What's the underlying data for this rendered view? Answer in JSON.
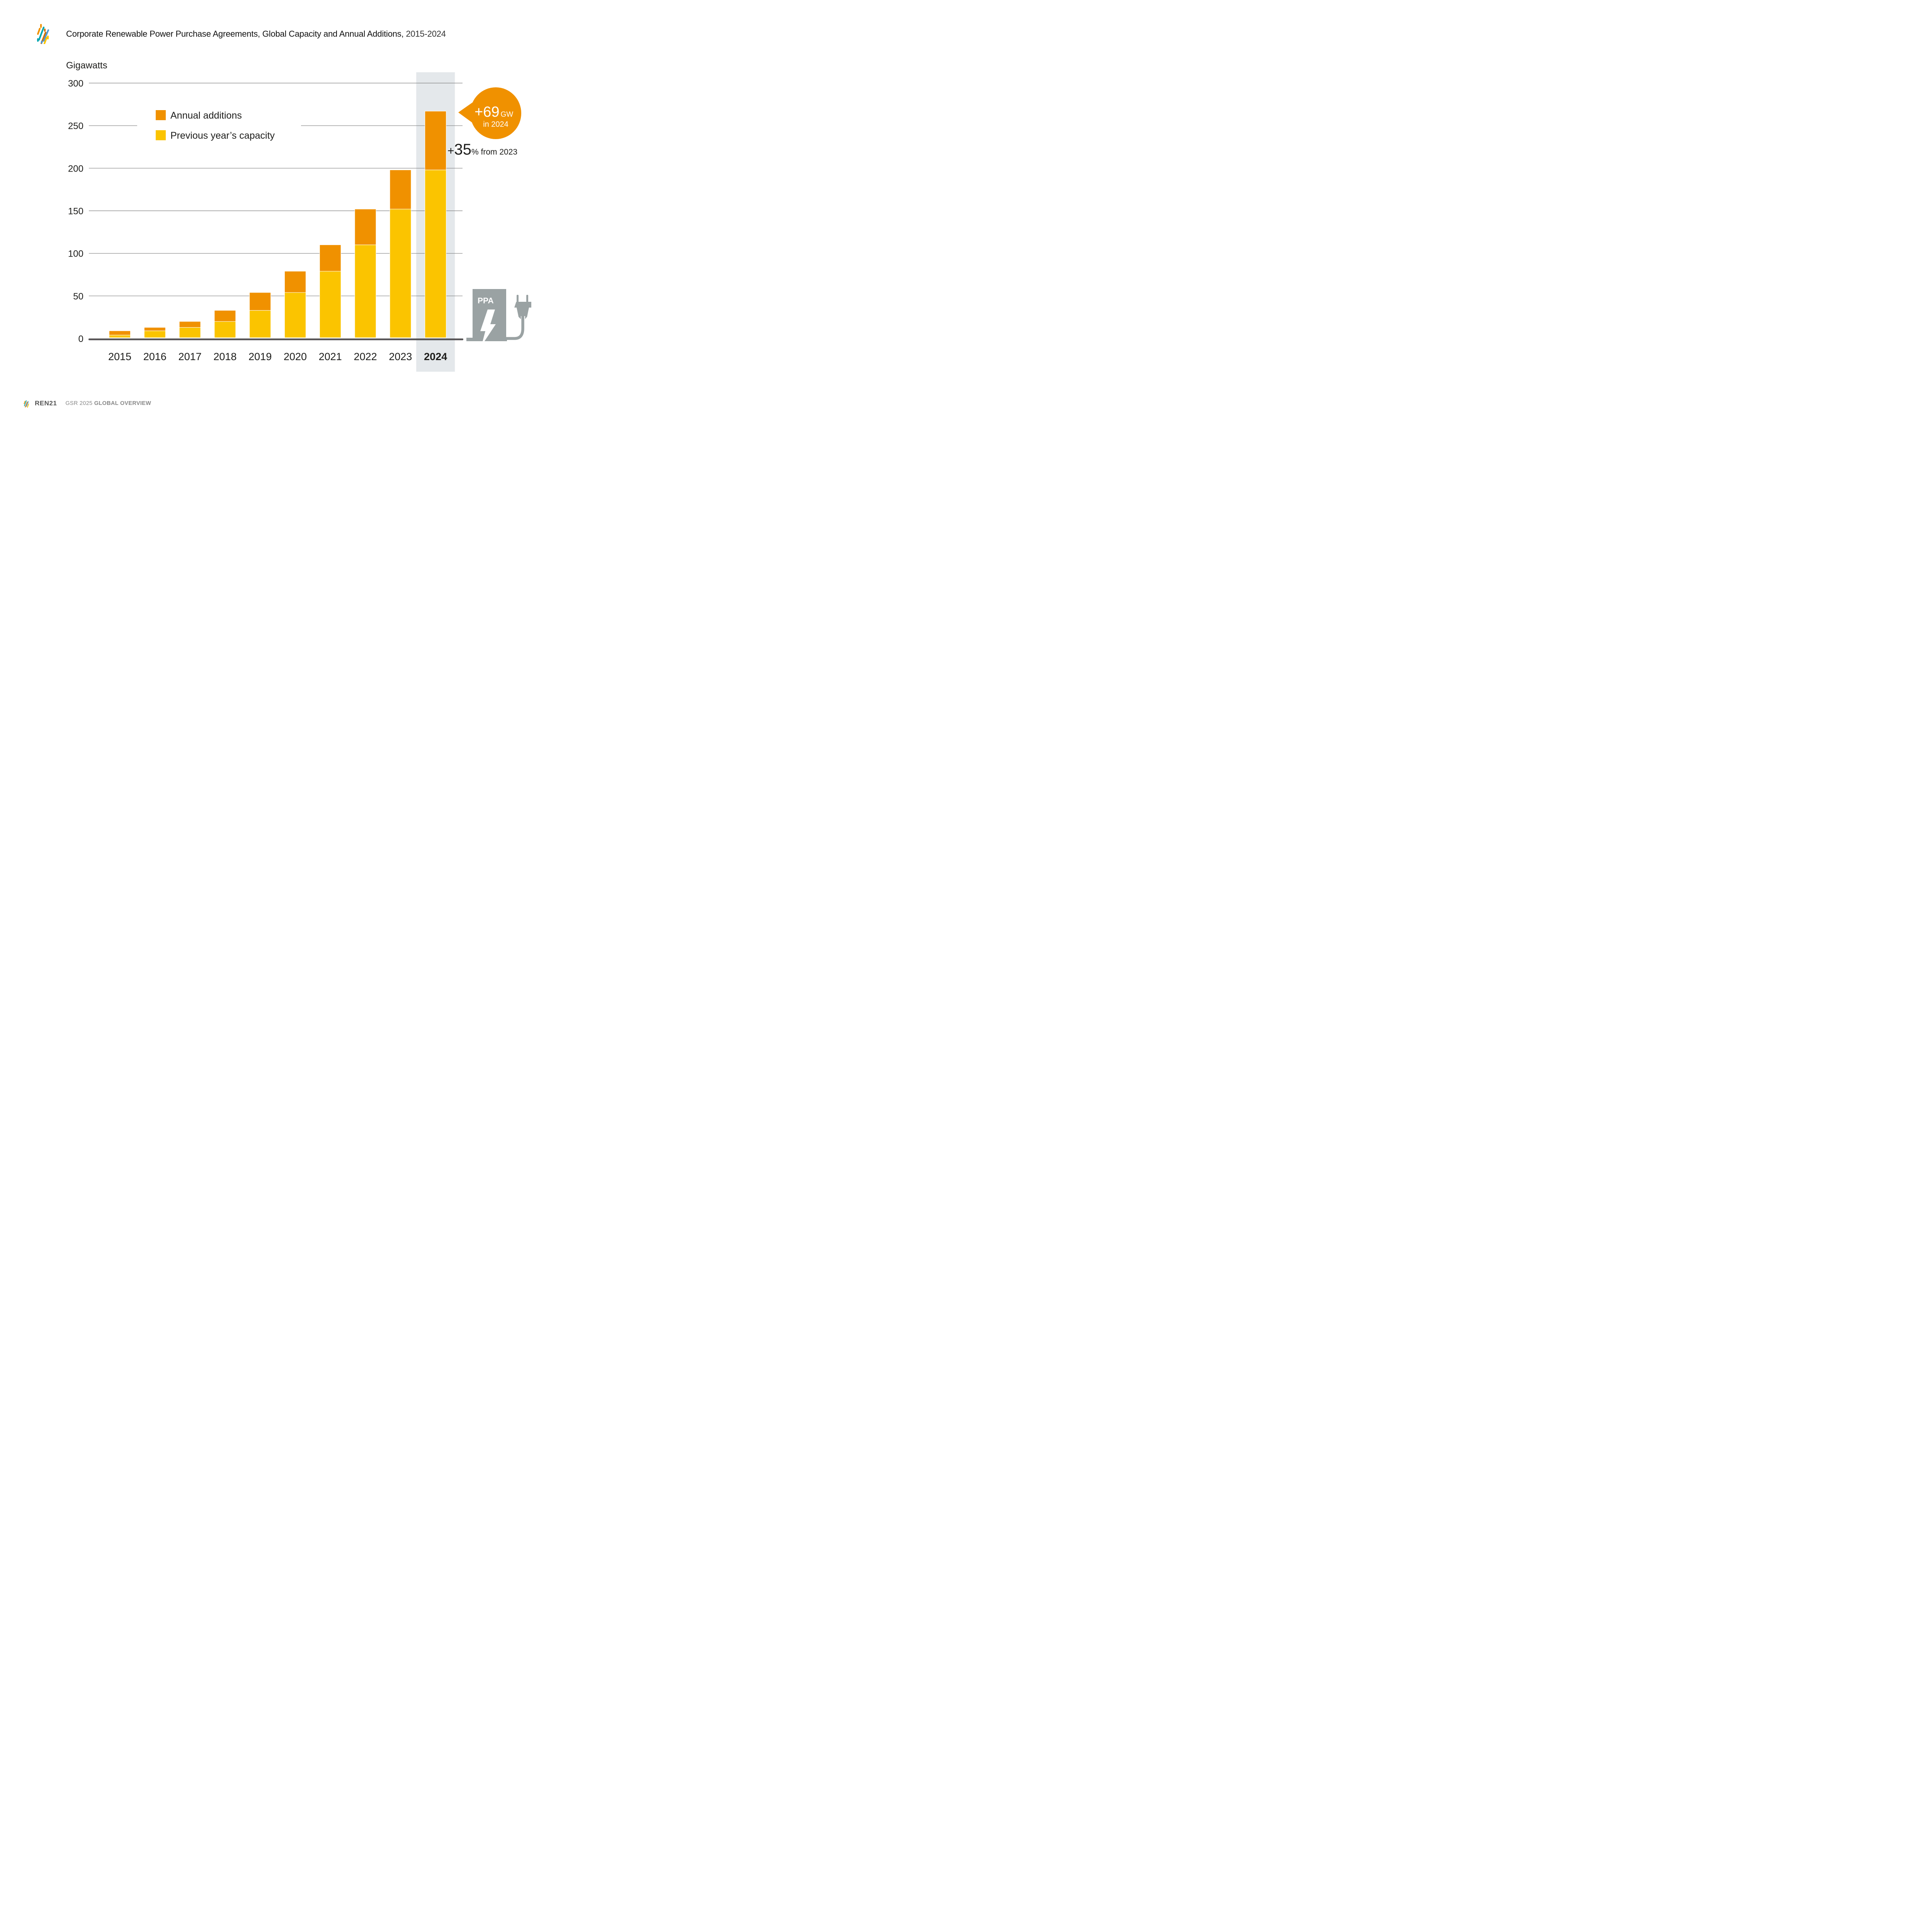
{
  "header": {
    "title_bold": "Corporate Renewable Power Purchase Agreements, Global Capacity and Annual Additions,",
    "title_years": "2015-2024"
  },
  "footer": {
    "brand": "REN21",
    "report_prefix": "GSR 2025",
    "report_bold": "GLOBAL OVERVIEW"
  },
  "colors": {
    "annual_additions": "#F09100",
    "previous_capacity": "#FBC400",
    "highlight_band": "#E4E8EB",
    "gridline": "#808080",
    "baseline": "#555354",
    "ppa_icon": "#9AA2A3"
  },
  "annotations": {
    "bubble_value": "+69",
    "bubble_unit": "GW",
    "bubble_sub": "in 2024",
    "growth_plus": "+",
    "growth_value": "35",
    "growth_suffix": "% from 2023",
    "ppa_label": "PPA"
  },
  "chart_data": {
    "type": "bar",
    "stacked": true,
    "title": "Corporate Renewable Power Purchase Agreements, Global Capacity and Annual Additions, 2015-2024",
    "xlabel": "",
    "ylabel": "Gigawatts",
    "ylim": [
      0,
      300
    ],
    "yticks": [
      0,
      50,
      100,
      150,
      200,
      250,
      300
    ],
    "grid": true,
    "legend_position": "top-left",
    "highlight_category": "2024",
    "categories": [
      "2015",
      "2016",
      "2017",
      "2018",
      "2019",
      "2020",
      "2021",
      "2022",
      "2023",
      "2024"
    ],
    "series": [
      {
        "name": "Previous year’s capacity",
        "color": "#FBC400",
        "values": [
          4,
          9,
          13,
          20,
          33,
          54,
          79,
          110,
          152,
          198
        ]
      },
      {
        "name": "Annual additions",
        "color": "#F09100",
        "values": [
          5,
          4,
          7,
          13,
          21,
          25,
          31,
          42,
          46,
          69
        ]
      }
    ],
    "totals": [
      9,
      13,
      20,
      33,
      54,
      79,
      110,
      152,
      198,
      267
    ],
    "legend": [
      "Annual additions",
      "Previous year’s capacity"
    ]
  }
}
